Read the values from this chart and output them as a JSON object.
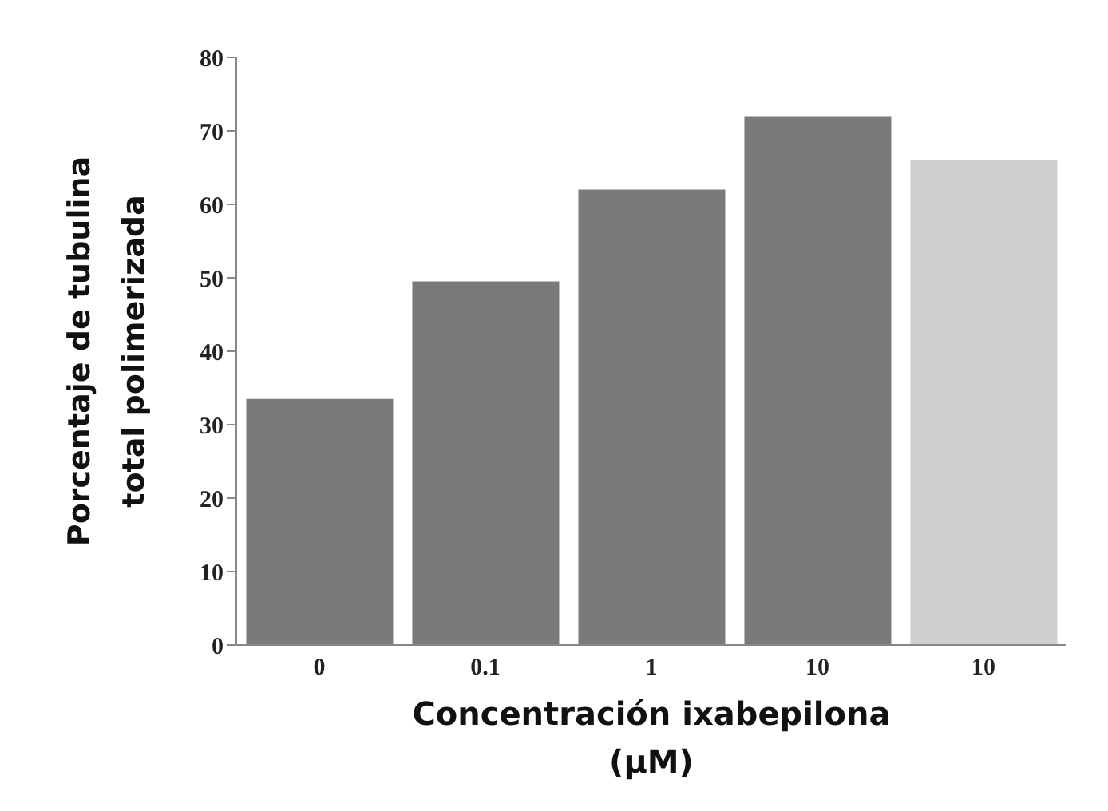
{
  "chart_data": {
    "type": "bar",
    "categories": [
      "0",
      "0.1",
      "1",
      "10",
      "10"
    ],
    "values": [
      33.5,
      49.5,
      62,
      72,
      66
    ],
    "colors": [
      "#7a7a7a",
      "#7a7a7a",
      "#7a7a7a",
      "#7a7a7a",
      "#cfcfcf"
    ],
    "xlabel": "Concentración ixabepilona (μM)",
    "ylabel": "Porcentaje de tubulina total polimerizada",
    "ylim": [
      0,
      80
    ],
    "yticks": [
      0,
      10,
      20,
      30,
      40,
      50,
      60,
      70,
      80
    ],
    "grid": false
  }
}
